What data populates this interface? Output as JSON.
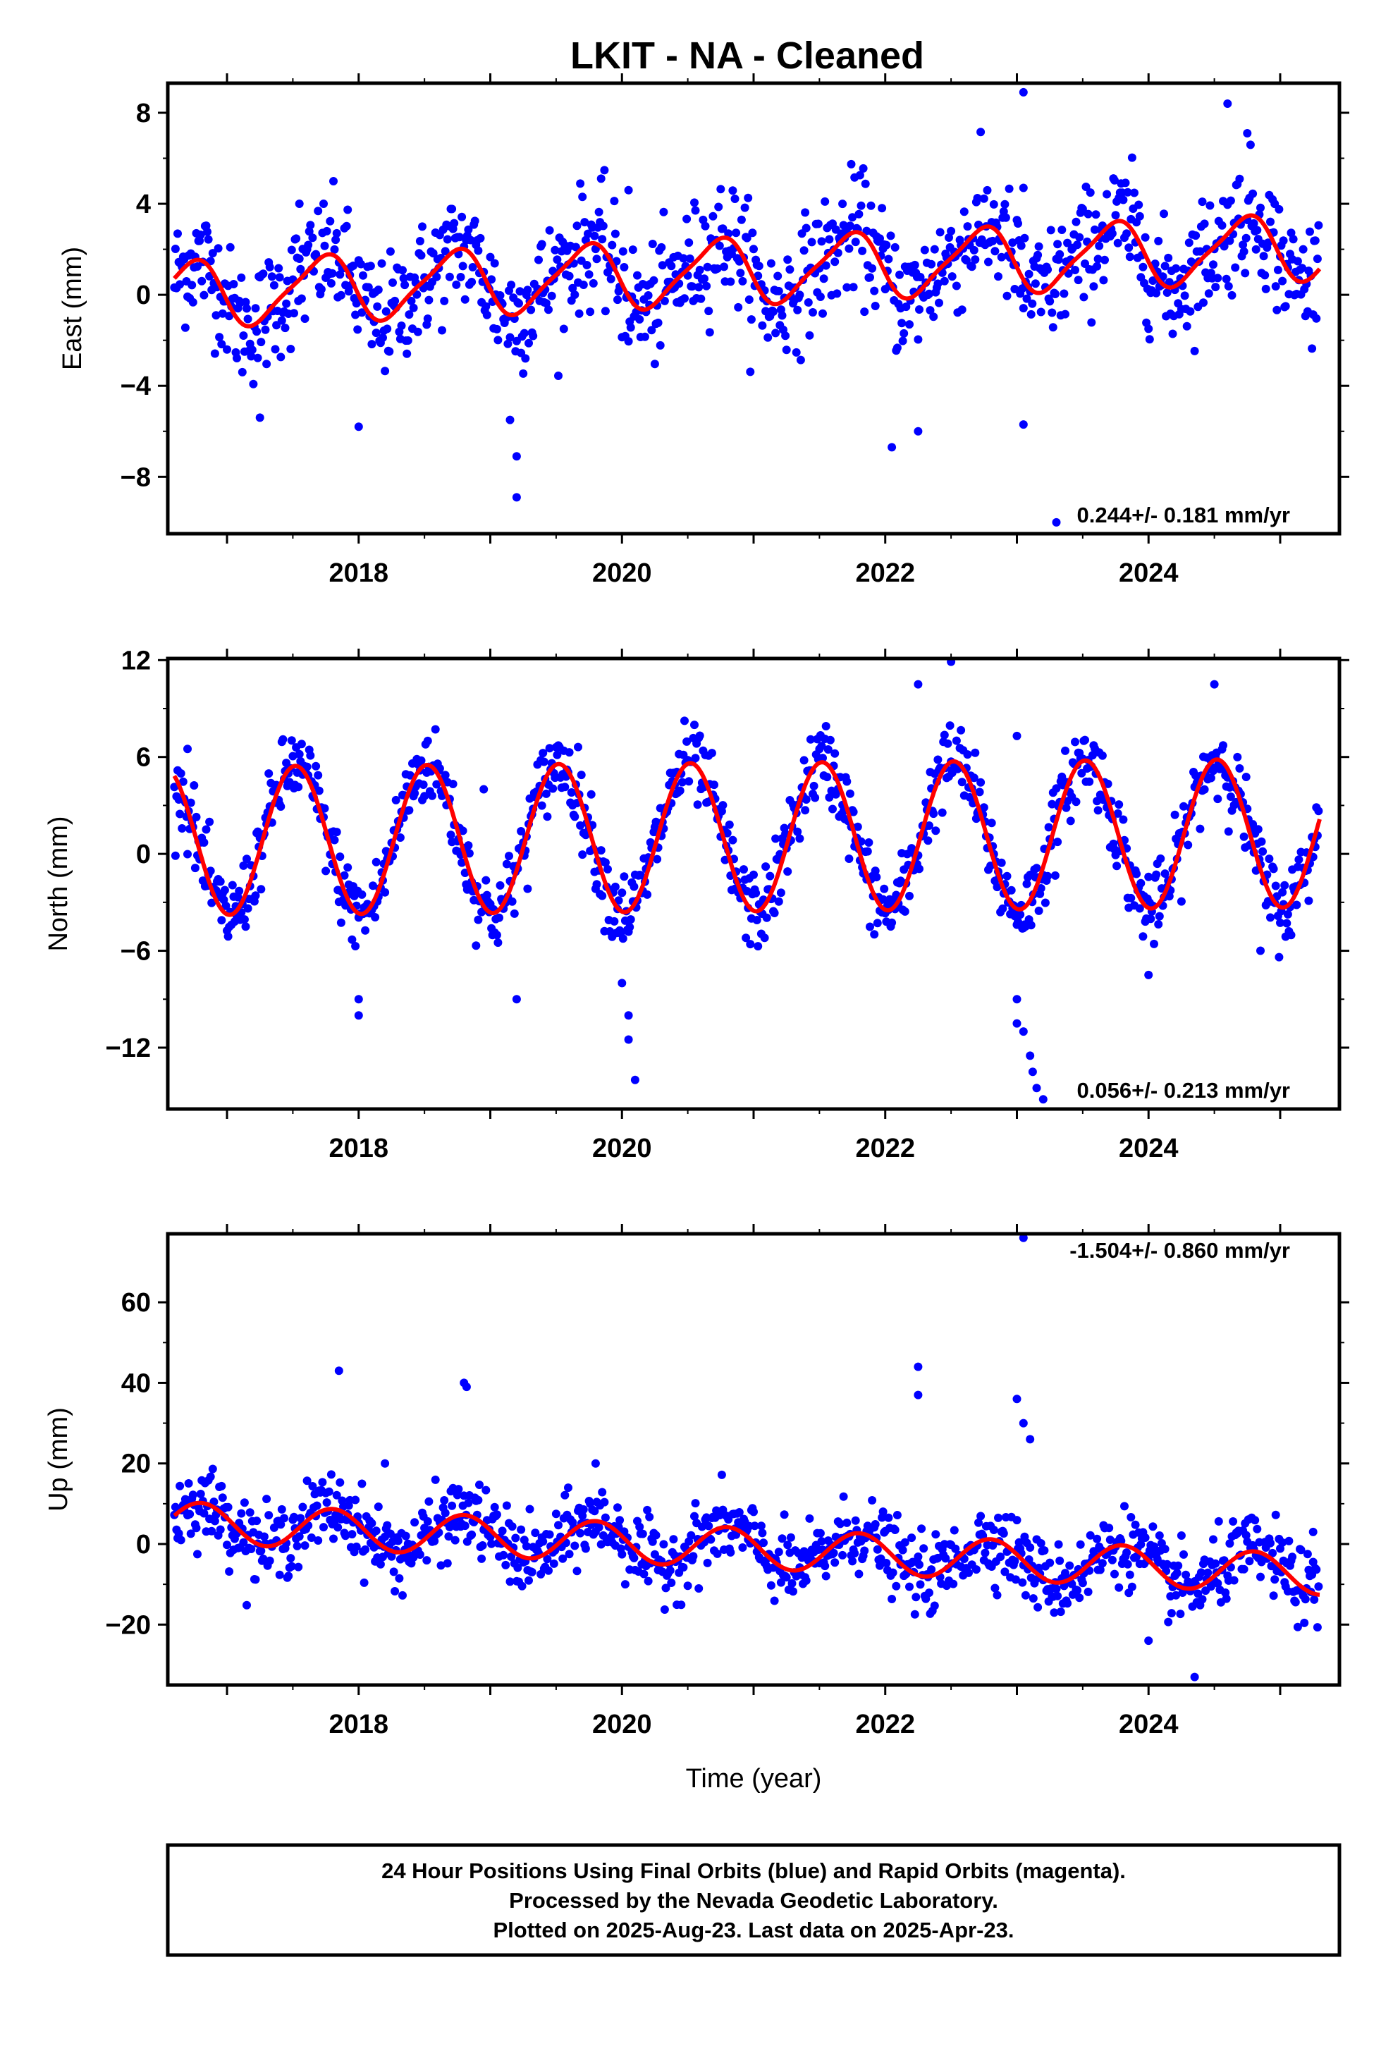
{
  "title": "LKIT  - NA - Cleaned",
  "colors": {
    "data": "#0000ff",
    "model": "#ff0000",
    "frame": "#000000"
  },
  "chart_data": [
    {
      "type": "scatter",
      "id": "east",
      "ylabel": "East (mm)",
      "xlabel": "",
      "xlim": [
        2016.55,
        2025.45
      ],
      "ylim": [
        -10.5,
        9.3
      ],
      "yticks": [
        8,
        4,
        0,
        -4,
        -8
      ],
      "ytick_labels": [
        "8",
        "4",
        "0",
        "−4",
        "−8"
      ],
      "xticks": [
        2018,
        2020,
        2022,
        2024
      ],
      "xtick_labels": [
        "2018",
        "2020",
        "2022",
        "2024"
      ],
      "grid": false,
      "rate_text": "0.244+/- 0.181 mm/yr",
      "rate_position": "bottom-right",
      "model": {
        "start": 2016.6,
        "end": 2025.3,
        "offset": 0.0,
        "trend": 0.244,
        "annual_amp": 1.4,
        "annual_peak": 0.72,
        "semi_amp": 0.3,
        "semi_peak": 0.35
      },
      "scatter_sd": 1.3,
      "outliers": [
        [
          2023.05,
          8.9
        ],
        [
          2024.6,
          8.4
        ],
        [
          2024.75,
          7.1
        ],
        [
          2023.05,
          4.7
        ],
        [
          2019.2,
          -8.9
        ],
        [
          2019.2,
          -7.1
        ],
        [
          2019.15,
          -5.5
        ],
        [
          2022.05,
          -6.7
        ],
        [
          2022.25,
          -6.0
        ],
        [
          2023.05,
          -5.7
        ],
        [
          2018.0,
          -5.8
        ],
        [
          2017.25,
          -5.4
        ],
        [
          2023.3,
          -10.0
        ],
        [
          2020.05,
          4.6
        ],
        [
          2017.55,
          4.0
        ]
      ]
    },
    {
      "type": "scatter",
      "id": "north",
      "ylabel": "North (mm)",
      "xlabel": "",
      "xlim": [
        2016.55,
        2025.45
      ],
      "ylim": [
        -15.8,
        12.1
      ],
      "yticks": [
        12,
        6,
        0,
        -6,
        -12
      ],
      "ytick_labels": [
        "12",
        "6",
        "0",
        "−6",
        "−12"
      ],
      "xticks": [
        2018,
        2020,
        2022,
        2024
      ],
      "xtick_labels": [
        "2018",
        "2020",
        "2022",
        "2024"
      ],
      "grid": false,
      "rate_text": "0.056+/- 0.213 mm/yr",
      "rate_position": "bottom-right",
      "model": {
        "start": 2016.6,
        "end": 2025.3,
        "offset": 0.8,
        "trend": 0.056,
        "annual_amp": 4.6,
        "annual_peak": 0.52,
        "semi_amp": 0.0,
        "semi_peak": 0.0
      },
      "scatter_sd": 1.2,
      "outliers": [
        [
          2022.25,
          10.5
        ],
        [
          2022.5,
          11.9
        ],
        [
          2023.0,
          7.3
        ],
        [
          2024.5,
          10.5
        ],
        [
          2020.0,
          -8.0
        ],
        [
          2020.05,
          -10.0
        ],
        [
          2020.05,
          -11.5
        ],
        [
          2020.1,
          -14.0
        ],
        [
          2018.0,
          -10.0
        ],
        [
          2018.0,
          -9.0
        ],
        [
          2019.2,
          -9.0
        ],
        [
          2023.0,
          -9.0
        ],
        [
          2023.05,
          -11.0
        ],
        [
          2023.1,
          -12.5
        ],
        [
          2023.12,
          -13.5
        ],
        [
          2023.15,
          -14.5
        ],
        [
          2023.2,
          -15.2
        ],
        [
          2023.0,
          -10.5
        ],
        [
          2024.0,
          -7.5
        ],
        [
          2024.85,
          -6.0
        ],
        [
          2016.7,
          6.5
        ],
        [
          2018.95,
          4.0
        ]
      ]
    },
    {
      "type": "scatter",
      "id": "up",
      "ylabel": "Up (mm)",
      "xlabel": "Time (year)",
      "xlim": [
        2016.55,
        2025.45
      ],
      "ylim": [
        -35,
        77
      ],
      "yticks": [
        60,
        40,
        20,
        0,
        -20
      ],
      "ytick_labels": [
        "60",
        "40",
        "20",
        "0",
        "−20"
      ],
      "xticks": [
        2018,
        2020,
        2022,
        2024
      ],
      "xtick_labels": [
        "2018",
        "2020",
        "2022",
        "2024"
      ],
      "grid": false,
      "rate_text": "-1.504+/- 0.860 mm/yr",
      "rate_position": "top-right",
      "model": {
        "start": 2016.6,
        "end": 2025.3,
        "offset": 5.5,
        "trend": -1.504,
        "annual_amp": 5.0,
        "annual_peak": 0.8,
        "semi_amp": 0.0,
        "semi_peak": 0.0
      },
      "scatter_sd": 4.5,
      "outliers": [
        [
          2017.85,
          43
        ],
        [
          2018.8,
          40
        ],
        [
          2018.82,
          39
        ],
        [
          2022.25,
          44
        ],
        [
          2022.25,
          37
        ],
        [
          2023.05,
          76
        ],
        [
          2023.0,
          36
        ],
        [
          2023.05,
          30
        ],
        [
          2023.1,
          26
        ],
        [
          2024.0,
          -24
        ],
        [
          2024.35,
          -33
        ],
        [
          2025.25,
          3
        ],
        [
          2019.8,
          20
        ],
        [
          2018.2,
          20
        ]
      ]
    }
  ],
  "footer": {
    "line1": "24 Hour Positions Using Final Orbits (blue) and Rapid Orbits (magenta).",
    "line2": "Processed by the Nevada Geodetic Laboratory.",
    "line3": "Plotted on 2025-Aug-23. Last data on 2025-Apr-23."
  }
}
